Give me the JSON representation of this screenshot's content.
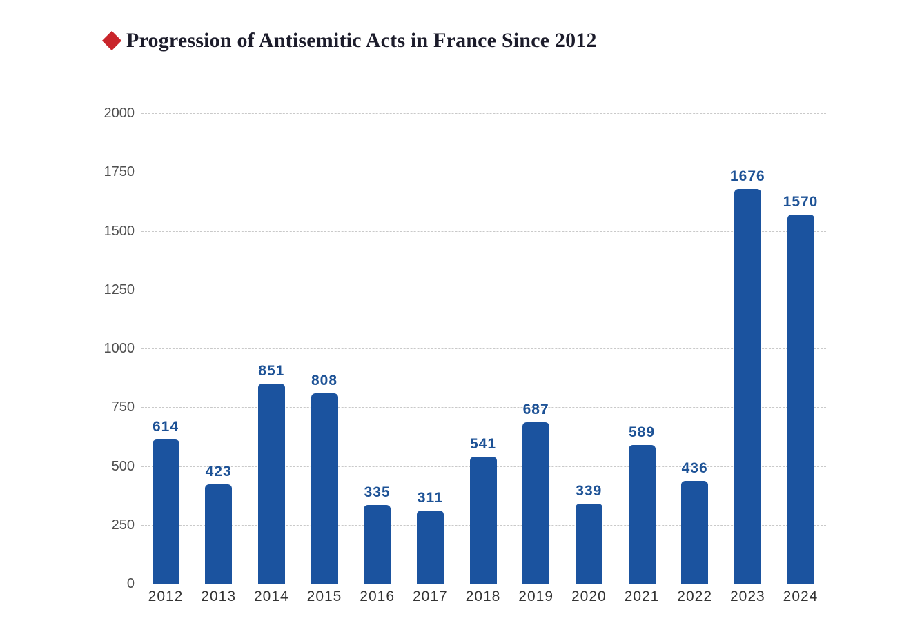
{
  "header": {
    "title": "Progression of Antisemitic Acts in France Since 2012",
    "bullet_icon": "diamond-icon",
    "bullet_color": "#c9252b",
    "title_color": "#1c1c2b"
  },
  "chart_data": {
    "type": "bar",
    "title": "Progression of Antisemitic Acts in France Since 2012",
    "categories": [
      "2012",
      "2013",
      "2014",
      "2015",
      "2016",
      "2017",
      "2018",
      "2019",
      "2020",
      "2021",
      "2022",
      "2023",
      "2024"
    ],
    "values": [
      614,
      423,
      851,
      808,
      335,
      311,
      541,
      687,
      339,
      589,
      436,
      1676,
      1570
    ],
    "xlabel": "",
    "ylabel": "",
    "ylim": [
      0,
      2000
    ],
    "yticks": [
      0,
      250,
      500,
      750,
      1000,
      1250,
      1500,
      1750,
      2000
    ],
    "grid": "horizontal-dashed",
    "legend_position": "none",
    "bar_color": "#1b539f",
    "value_label_color": "#1d5296",
    "ytick_color": "#4f4f4f",
    "xtick_color": "#333333",
    "gridline_color": "#c9c9c9"
  }
}
